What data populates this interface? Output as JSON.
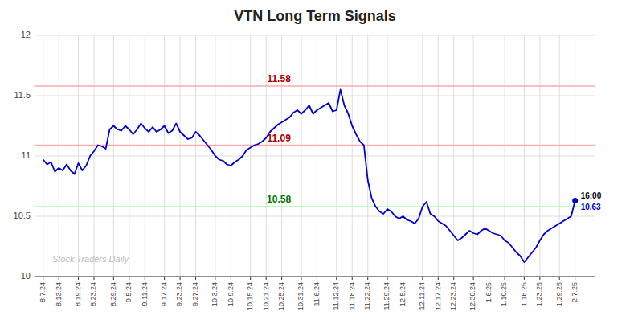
{
  "chart_data": {
    "type": "line",
    "title": "VTN Long Term Signals",
    "color": "#0000cc",
    "grid": true,
    "ylim": [
      10.0,
      12.0
    ],
    "yticks": [
      10.0,
      10.5,
      11.0,
      11.5,
      12.0
    ],
    "categories": [
      "8.7.24",
      null,
      null,
      null,
      "8.13.24",
      null,
      null,
      null,
      null,
      "8.19.24",
      null,
      null,
      null,
      "8.23.24",
      null,
      null,
      null,
      null,
      "8.29.24",
      null,
      null,
      null,
      "9.5.24",
      null,
      null,
      null,
      "9.11.24",
      null,
      null,
      null,
      null,
      "9.17.24",
      null,
      null,
      null,
      "9.23.24",
      null,
      null,
      null,
      "9.27.24",
      null,
      null,
      null,
      null,
      "10.3.24",
      null,
      null,
      null,
      "10.9.24",
      null,
      null,
      null,
      null,
      "10.15.24",
      null,
      null,
      null,
      "10.21.24",
      null,
      null,
      null,
      "10.25.24",
      null,
      null,
      null,
      null,
      "10.31.24",
      null,
      null,
      null,
      "11.6.24",
      null,
      null,
      null,
      null,
      "11.12.24",
      null,
      null,
      null,
      "11.18.24",
      null,
      null,
      null,
      "11.22.24",
      null,
      null,
      null,
      null,
      "11.29.24",
      null,
      null,
      null,
      "12.5.24",
      null,
      null,
      null,
      null,
      "12.11.24",
      null,
      null,
      null,
      "12.17.24",
      null,
      null,
      null,
      "12.23.24",
      null,
      null,
      null,
      null,
      "12.30.24",
      null,
      null,
      null,
      "1.6.25",
      null,
      null,
      null,
      "1.10.25",
      null,
      null,
      null,
      null,
      "1.16.25",
      null,
      null,
      null,
      "1.23.25",
      null,
      null,
      null,
      null,
      "1.29.25",
      null,
      null,
      null,
      "2.7.25"
    ],
    "values": [
      10.97,
      10.93,
      10.95,
      10.87,
      10.9,
      10.88,
      10.93,
      10.88,
      10.85,
      10.94,
      10.88,
      10.92,
      11.0,
      11.04,
      11.09,
      11.08,
      11.06,
      11.22,
      11.25,
      11.22,
      11.21,
      11.25,
      11.22,
      11.18,
      11.22,
      11.27,
      11.23,
      11.2,
      11.24,
      11.2,
      11.22,
      11.25,
      11.19,
      11.21,
      11.27,
      11.2,
      11.17,
      11.14,
      11.15,
      11.2,
      11.17,
      11.13,
      11.09,
      11.05,
      11.0,
      10.97,
      10.96,
      10.93,
      10.92,
      10.95,
      10.97,
      11.0,
      11.05,
      11.07,
      11.09,
      11.1,
      11.12,
      11.15,
      11.2,
      11.23,
      11.26,
      11.28,
      11.3,
      11.32,
      11.36,
      11.38,
      11.35,
      11.38,
      11.42,
      11.35,
      11.38,
      11.4,
      11.42,
      11.44,
      11.37,
      11.38,
      11.55,
      11.42,
      11.35,
      11.25,
      11.18,
      11.12,
      11.09,
      10.8,
      10.65,
      10.58,
      10.54,
      10.52,
      10.56,
      10.54,
      10.5,
      10.48,
      10.5,
      10.47,
      10.46,
      10.44,
      10.48,
      10.58,
      10.62,
      10.52,
      10.5,
      10.46,
      10.44,
      10.42,
      10.38,
      10.34,
      10.3,
      10.32,
      10.35,
      10.38,
      10.36,
      10.35,
      10.38,
      10.4,
      10.38,
      10.36,
      10.35,
      10.34,
      10.3,
      10.28,
      10.24,
      10.2,
      10.17,
      10.12,
      10.16,
      10.2,
      10.24,
      10.3,
      10.35,
      10.38,
      10.4,
      10.42,
      10.44,
      10.46,
      10.48,
      10.5,
      10.63
    ],
    "hlines": [
      {
        "value": 11.58,
        "label": "11.58",
        "color": "#ffaaaa",
        "label_color": "#aa0000"
      },
      {
        "value": 11.09,
        "label": "11.09",
        "color": "#ffaaaa",
        "label_color": "#aa0000"
      },
      {
        "value": 10.58,
        "label": "10.58",
        "color": "#aaffaa",
        "label_color": "#007700"
      }
    ],
    "annotations": [
      "16:00"
    ],
    "last_value_label": "10.63",
    "watermark": "Stock Traders Daily"
  }
}
